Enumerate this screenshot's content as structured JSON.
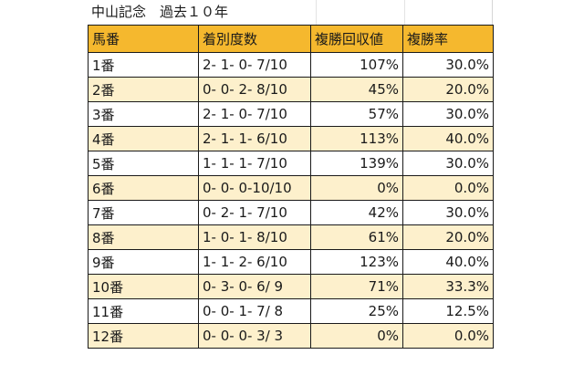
{
  "title": "中山記念　過去１０年",
  "headers": [
    "馬番",
    "着別度数",
    "複勝回収値",
    "複勝率"
  ],
  "rows": [
    [
      "1番",
      "2- 1- 0- 7/10",
      "107%",
      "30.0%"
    ],
    [
      "2番",
      "0- 0- 2- 8/10",
      "45%",
      "20.0%"
    ],
    [
      "3番",
      "2- 1- 0- 7/10",
      "57%",
      "30.0%"
    ],
    [
      "4番",
      "2- 1- 1- 6/10",
      "113%",
      "40.0%"
    ],
    [
      "5番",
      "1- 1- 1- 7/10",
      "139%",
      "30.0%"
    ],
    [
      "6番",
      "0- 0- 0-10/10",
      "0%",
      "0.0%"
    ],
    [
      "7番",
      "0- 2- 1- 7/10",
      "42%",
      "30.0%"
    ],
    [
      "8番",
      "1- 0- 1- 8/10",
      "61%",
      "20.0%"
    ],
    [
      "9番",
      "1- 1- 2- 6/10",
      "123%",
      "40.0%"
    ],
    [
      "10番",
      "0- 3- 0- 6/ 9",
      "71%",
      "33.3%"
    ],
    [
      "11番",
      "0- 0- 1- 7/ 8",
      "25%",
      "12.5%"
    ],
    [
      "12番",
      "0- 0- 0- 3/ 3",
      "0%",
      "0.0%"
    ]
  ],
  "colors": {
    "header_bg": "#f5b82e",
    "stripe_bg": "#fdf0cc"
  }
}
